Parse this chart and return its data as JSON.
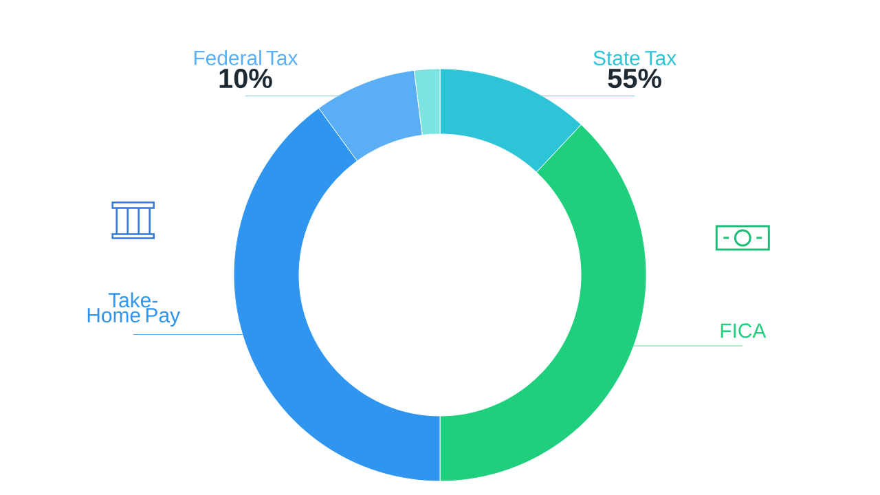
{
  "chart_data": {
    "type": "donut",
    "categories": [
      "State Tax",
      "FICA",
      "Take-Home Pay",
      "Federal Tax",
      null
    ],
    "values": [
      12,
      38,
      40,
      8,
      2
    ],
    "colors": [
      "#2ec4d8",
      "#1fcf7e",
      "#2f95ee",
      "#5aaef5",
      "#7de3e0"
    ],
    "annotations": [
      {
        "text": "10%",
        "x": "Federal Tax"
      },
      {
        "text": "55%",
        "x": "State Tax"
      }
    ]
  }
}
